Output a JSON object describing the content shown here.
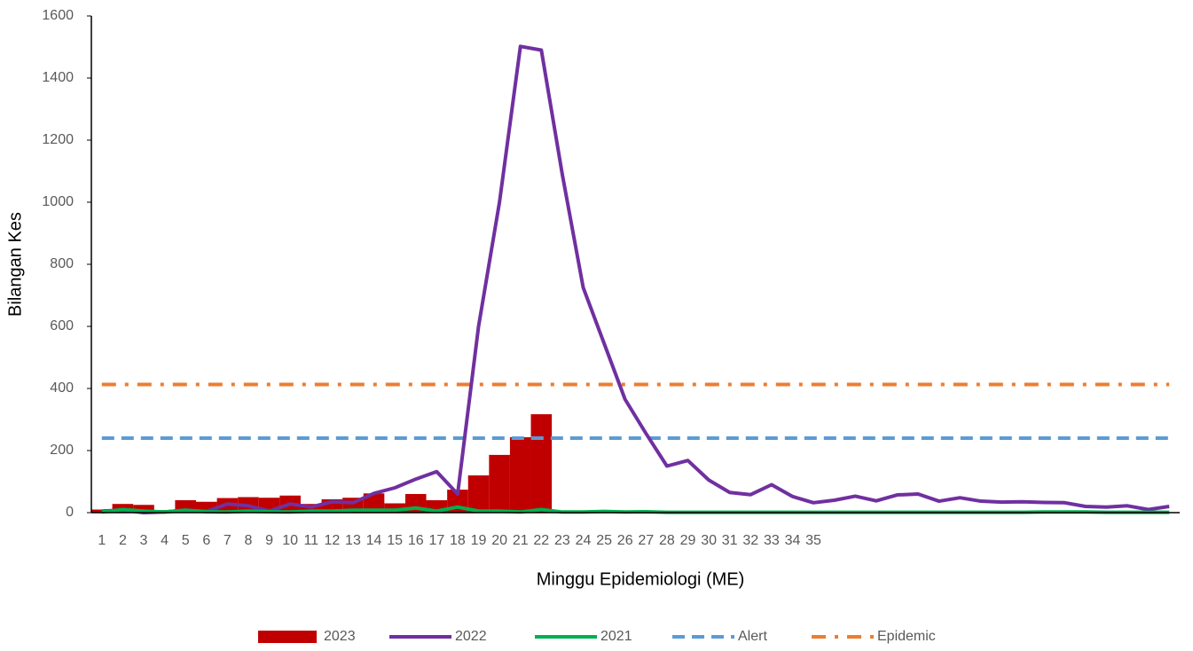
{
  "chart_data": {
    "type": "combo",
    "ylabel": "Bilangan Kes",
    "xlabel": "Minggu Epidemiologi (ME)",
    "categories": [
      "1",
      "2",
      "3",
      "4",
      "5",
      "6",
      "7",
      "8",
      "9",
      "10",
      "11",
      "12",
      "13",
      "14",
      "15",
      "16",
      "17",
      "18",
      "19",
      "20",
      "21",
      "22",
      "23",
      "24",
      "25",
      "26",
      "27",
      "28",
      "29",
      "30",
      "31",
      "32",
      "33",
      "34",
      "35",
      null,
      null,
      null,
      null,
      null,
      null,
      null,
      null,
      null,
      null,
      null,
      null,
      null,
      null,
      null,
      null,
      null
    ],
    "ylim": [
      0,
      1600
    ],
    "yticks": [
      0,
      200,
      400,
      600,
      800,
      1000,
      1200,
      1400,
      1600
    ],
    "grid": false,
    "legend": "bottom",
    "series": [
      {
        "name": "2023",
        "type": "bar",
        "color": "#c00000",
        "values": [
          10,
          28,
          25,
          8,
          40,
          35,
          47,
          50,
          48,
          55,
          28,
          43,
          48,
          62,
          30,
          60,
          40,
          74,
          120,
          186,
          243,
          317,
          null,
          null,
          null,
          null,
          null,
          null,
          null,
          null,
          null,
          null,
          null,
          null,
          null,
          null,
          null,
          null,
          null,
          null,
          null,
          null,
          null,
          null,
          null,
          null,
          null,
          null,
          null,
          null,
          null,
          null
        ]
      },
      {
        "name": "2022",
        "type": "line",
        "color": "#7030a0",
        "values": [
          5,
          8,
          0,
          2,
          8,
          4,
          28,
          22,
          5,
          28,
          18,
          35,
          32,
          62,
          80,
          108,
          132,
          60,
          600,
          1000,
          1502,
          1490,
          1090,
          725,
          545,
          365,
          255,
          150,
          168,
          105,
          65,
          58,
          90,
          52,
          32,
          40,
          53,
          38,
          57,
          60,
          37,
          48,
          37,
          34,
          35,
          33,
          32,
          20,
          18,
          22,
          10,
          20
        ]
      },
      {
        "name": "2021",
        "type": "line",
        "color": "#00b050",
        "values": [
          2,
          10,
          5,
          2,
          8,
          3,
          2,
          5,
          3,
          2,
          5,
          5,
          8,
          8,
          8,
          15,
          5,
          18,
          5,
          5,
          2,
          10,
          2,
          2,
          4,
          2,
          3,
          1,
          1,
          1,
          1,
          1,
          1,
          1,
          1,
          1,
          1,
          1,
          1,
          1,
          1,
          1,
          1,
          1,
          1,
          2,
          2,
          2,
          1,
          1,
          1,
          1
        ]
      },
      {
        "name": "Alert",
        "type": "hline",
        "color": "#5b9bd5",
        "dash": "14,8",
        "value": 240
      },
      {
        "name": "Epidemic",
        "type": "hline",
        "color": "#ed7d31",
        "dash": "16,10,4,10",
        "value": 413
      }
    ]
  }
}
